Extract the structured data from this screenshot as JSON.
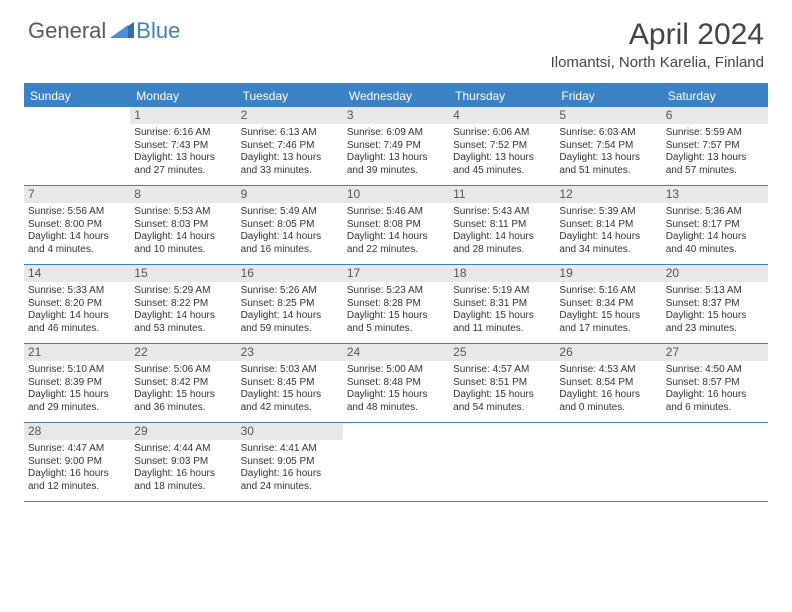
{
  "logo": {
    "part1": "General",
    "part2": "Blue"
  },
  "title": "April 2024",
  "location": "Ilomantsi, North Karelia, Finland",
  "colors": {
    "accent": "#3b82c4",
    "daynum_bg": "#e8e8e8",
    "text": "#333333",
    "title_text": "#444444",
    "logo_gray": "#5a5a5a"
  },
  "weekdays": [
    "Sunday",
    "Monday",
    "Tuesday",
    "Wednesday",
    "Thursday",
    "Friday",
    "Saturday"
  ],
  "weeks": [
    [
      null,
      {
        "n": "1",
        "sr": "6:16 AM",
        "ss": "7:43 PM",
        "dl": "13 hours and 27 minutes."
      },
      {
        "n": "2",
        "sr": "6:13 AM",
        "ss": "7:46 PM",
        "dl": "13 hours and 33 minutes."
      },
      {
        "n": "3",
        "sr": "6:09 AM",
        "ss": "7:49 PM",
        "dl": "13 hours and 39 minutes."
      },
      {
        "n": "4",
        "sr": "6:06 AM",
        "ss": "7:52 PM",
        "dl": "13 hours and 45 minutes."
      },
      {
        "n": "5",
        "sr": "6:03 AM",
        "ss": "7:54 PM",
        "dl": "13 hours and 51 minutes."
      },
      {
        "n": "6",
        "sr": "5:59 AM",
        "ss": "7:57 PM",
        "dl": "13 hours and 57 minutes."
      }
    ],
    [
      {
        "n": "7",
        "sr": "5:56 AM",
        "ss": "8:00 PM",
        "dl": "14 hours and 4 minutes."
      },
      {
        "n": "8",
        "sr": "5:53 AM",
        "ss": "8:03 PM",
        "dl": "14 hours and 10 minutes."
      },
      {
        "n": "9",
        "sr": "5:49 AM",
        "ss": "8:05 PM",
        "dl": "14 hours and 16 minutes."
      },
      {
        "n": "10",
        "sr": "5:46 AM",
        "ss": "8:08 PM",
        "dl": "14 hours and 22 minutes."
      },
      {
        "n": "11",
        "sr": "5:43 AM",
        "ss": "8:11 PM",
        "dl": "14 hours and 28 minutes."
      },
      {
        "n": "12",
        "sr": "5:39 AM",
        "ss": "8:14 PM",
        "dl": "14 hours and 34 minutes."
      },
      {
        "n": "13",
        "sr": "5:36 AM",
        "ss": "8:17 PM",
        "dl": "14 hours and 40 minutes."
      }
    ],
    [
      {
        "n": "14",
        "sr": "5:33 AM",
        "ss": "8:20 PM",
        "dl": "14 hours and 46 minutes."
      },
      {
        "n": "15",
        "sr": "5:29 AM",
        "ss": "8:22 PM",
        "dl": "14 hours and 53 minutes."
      },
      {
        "n": "16",
        "sr": "5:26 AM",
        "ss": "8:25 PM",
        "dl": "14 hours and 59 minutes."
      },
      {
        "n": "17",
        "sr": "5:23 AM",
        "ss": "8:28 PM",
        "dl": "15 hours and 5 minutes."
      },
      {
        "n": "18",
        "sr": "5:19 AM",
        "ss": "8:31 PM",
        "dl": "15 hours and 11 minutes."
      },
      {
        "n": "19",
        "sr": "5:16 AM",
        "ss": "8:34 PM",
        "dl": "15 hours and 17 minutes."
      },
      {
        "n": "20",
        "sr": "5:13 AM",
        "ss": "8:37 PM",
        "dl": "15 hours and 23 minutes."
      }
    ],
    [
      {
        "n": "21",
        "sr": "5:10 AM",
        "ss": "8:39 PM",
        "dl": "15 hours and 29 minutes."
      },
      {
        "n": "22",
        "sr": "5:06 AM",
        "ss": "8:42 PM",
        "dl": "15 hours and 36 minutes."
      },
      {
        "n": "23",
        "sr": "5:03 AM",
        "ss": "8:45 PM",
        "dl": "15 hours and 42 minutes."
      },
      {
        "n": "24",
        "sr": "5:00 AM",
        "ss": "8:48 PM",
        "dl": "15 hours and 48 minutes."
      },
      {
        "n": "25",
        "sr": "4:57 AM",
        "ss": "8:51 PM",
        "dl": "15 hours and 54 minutes."
      },
      {
        "n": "26",
        "sr": "4:53 AM",
        "ss": "8:54 PM",
        "dl": "16 hours and 0 minutes."
      },
      {
        "n": "27",
        "sr": "4:50 AM",
        "ss": "8:57 PM",
        "dl": "16 hours and 6 minutes."
      }
    ],
    [
      {
        "n": "28",
        "sr": "4:47 AM",
        "ss": "9:00 PM",
        "dl": "16 hours and 12 minutes."
      },
      {
        "n": "29",
        "sr": "4:44 AM",
        "ss": "9:03 PM",
        "dl": "16 hours and 18 minutes."
      },
      {
        "n": "30",
        "sr": "4:41 AM",
        "ss": "9:05 PM",
        "dl": "16 hours and 24 minutes."
      },
      null,
      null,
      null,
      null
    ]
  ],
  "labels": {
    "sunrise": "Sunrise:",
    "sunset": "Sunset:",
    "daylight": "Daylight:"
  }
}
